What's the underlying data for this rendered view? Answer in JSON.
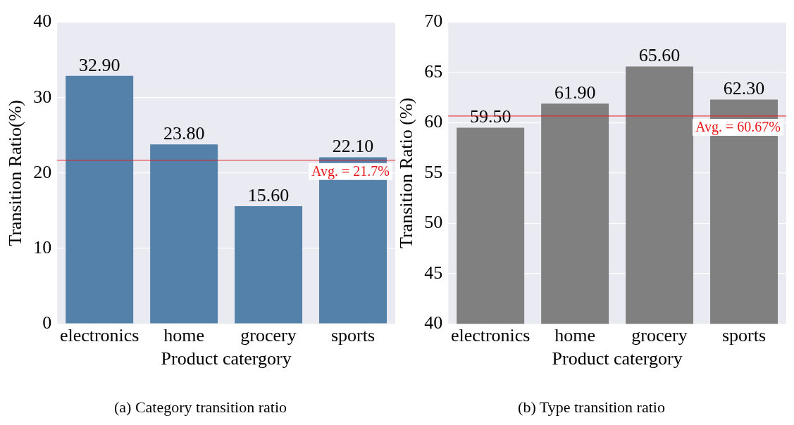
{
  "chart_data": [
    {
      "type": "bar",
      "title": "(a) Category transition ratio",
      "xlabel": "Product catergory",
      "ylabel": "Transition Ratio(%)",
      "categories": [
        "electronics",
        "home",
        "grocery",
        "sports"
      ],
      "values": [
        32.9,
        23.8,
        15.6,
        22.1
      ],
      "value_labels": [
        "32.90",
        "23.80",
        "15.60",
        "22.10"
      ],
      "color": "#5381a9",
      "ylim": [
        0,
        40
      ],
      "yticks": [
        0,
        10,
        20,
        30,
        40
      ],
      "grid": "y",
      "legend": false,
      "ref_lines": [
        {
          "axis": "y",
          "value": 21.7,
          "label": "Avg. = 21.7%",
          "color": "#e8191b"
        }
      ]
    },
    {
      "type": "bar",
      "title": "(b) Type transition ratio",
      "xlabel": "Product catergory",
      "ylabel": "Transition Ratio (%)",
      "categories": [
        "electronics",
        "home",
        "grocery",
        "sports"
      ],
      "values": [
        59.5,
        61.9,
        65.6,
        62.3
      ],
      "value_labels": [
        "59.50",
        "61.90",
        "65.60",
        "62.30"
      ],
      "color": "#808080",
      "ylim": [
        40,
        70
      ],
      "yticks": [
        40,
        45,
        50,
        55,
        60,
        65,
        70
      ],
      "grid": "y",
      "legend": false,
      "ref_lines": [
        {
          "axis": "y",
          "value": 60.67,
          "label": "Avg. = 60.67%",
          "color": "#e8191b"
        }
      ]
    }
  ]
}
